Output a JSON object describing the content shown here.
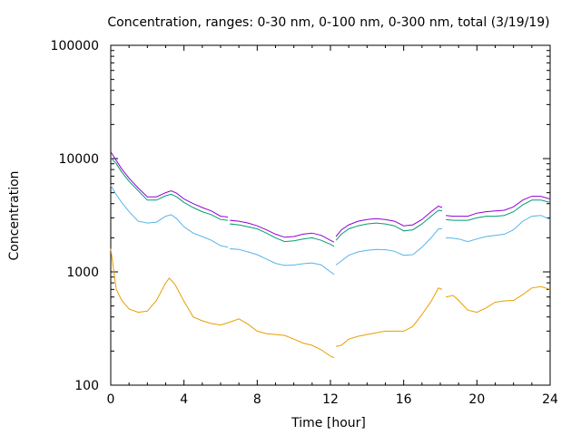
{
  "chart_data": {
    "type": "line",
    "title": "Concentration, ranges: 0-30 nm, 0-100 nm, 0-300 nm, total (3/19/19)",
    "xlabel": "Time [hour]",
    "ylabel": "Concentration",
    "xlim": [
      0,
      24
    ],
    "ylim": [
      100,
      100000
    ],
    "yscale": "log",
    "grid": false,
    "xticks": [
      0,
      4,
      8,
      12,
      16,
      20,
      24
    ],
    "xtick_labels": [
      "0",
      "4",
      "8",
      "12",
      "16",
      "20",
      "24"
    ],
    "yticks": [
      100,
      1000,
      10000,
      100000
    ],
    "ytick_labels": [
      "100",
      "1000",
      "10000",
      "100000"
    ],
    "series": [
      {
        "color": "#e69f00",
        "points": [
          [
            0.0,
            1600
          ],
          [
            0.3,
            700
          ],
          [
            0.6,
            560
          ],
          [
            1.0,
            470
          ],
          [
            1.5,
            440
          ],
          [
            2.0,
            450
          ],
          [
            2.5,
            560
          ],
          [
            3.0,
            800
          ],
          [
            3.2,
            880
          ],
          [
            3.5,
            780
          ],
          [
            4.0,
            550
          ],
          [
            4.5,
            400
          ],
          [
            5.0,
            370
          ],
          [
            5.5,
            350
          ],
          [
            6.0,
            340
          ],
          [
            6.5,
            360
          ],
          [
            7.0,
            385
          ],
          [
            7.5,
            345
          ],
          [
            8.0,
            300
          ],
          [
            8.5,
            285
          ],
          [
            9.0,
            280
          ],
          [
            9.5,
            275
          ],
          [
            10.0,
            255
          ],
          [
            10.5,
            235
          ],
          [
            11.0,
            225
          ],
          [
            11.5,
            205
          ],
          [
            12.0,
            180
          ],
          [
            12.2,
            175
          ],
          null,
          [
            12.3,
            220
          ],
          [
            12.6,
            225
          ],
          [
            13.0,
            255
          ],
          [
            13.5,
            270
          ],
          [
            14.0,
            280
          ],
          [
            14.5,
            290
          ],
          [
            15.0,
            300
          ],
          [
            15.5,
            300
          ],
          [
            16.0,
            300
          ],
          [
            16.5,
            330
          ],
          [
            17.0,
            420
          ],
          [
            17.5,
            550
          ],
          [
            17.9,
            720
          ],
          [
            18.1,
            700
          ],
          null,
          [
            18.3,
            600
          ],
          [
            18.7,
            620
          ],
          [
            19.0,
            560
          ],
          [
            19.5,
            460
          ],
          [
            20.0,
            440
          ],
          [
            20.5,
            480
          ],
          [
            21.0,
            540
          ],
          [
            21.5,
            555
          ],
          [
            22.0,
            560
          ],
          [
            22.5,
            630
          ],
          [
            23.0,
            720
          ],
          [
            23.5,
            740
          ],
          [
            24.0,
            700
          ]
        ]
      },
      {
        "color": "#56b4e9",
        "points": [
          [
            0.0,
            5800
          ],
          [
            0.3,
            4800
          ],
          [
            0.6,
            4100
          ],
          [
            1.0,
            3400
          ],
          [
            1.5,
            2800
          ],
          [
            2.0,
            2700
          ],
          [
            2.5,
            2750
          ],
          [
            3.0,
            3100
          ],
          [
            3.3,
            3200
          ],
          [
            3.6,
            2950
          ],
          [
            4.0,
            2500
          ],
          [
            4.5,
            2200
          ],
          [
            5.0,
            2050
          ],
          [
            5.5,
            1900
          ],
          [
            6.0,
            1700
          ],
          [
            6.4,
            1650
          ],
          null,
          [
            6.5,
            1600
          ],
          [
            7.0,
            1580
          ],
          [
            7.5,
            1500
          ],
          [
            8.0,
            1420
          ],
          [
            8.5,
            1300
          ],
          [
            9.0,
            1190
          ],
          [
            9.5,
            1140
          ],
          [
            10.0,
            1150
          ],
          [
            10.5,
            1180
          ],
          [
            11.0,
            1200
          ],
          [
            11.5,
            1150
          ],
          [
            12.0,
            1000
          ],
          [
            12.2,
            950
          ],
          null,
          [
            12.3,
            1150
          ],
          [
            12.6,
            1250
          ],
          [
            13.0,
            1400
          ],
          [
            13.5,
            1500
          ],
          [
            14.0,
            1550
          ],
          [
            14.5,
            1580
          ],
          [
            15.0,
            1570
          ],
          [
            15.5,
            1520
          ],
          [
            16.0,
            1400
          ],
          [
            16.5,
            1420
          ],
          [
            17.0,
            1650
          ],
          [
            17.5,
            2000
          ],
          [
            17.9,
            2400
          ],
          [
            18.1,
            2400
          ],
          null,
          [
            18.3,
            2000
          ],
          [
            18.7,
            1980
          ],
          [
            19.0,
            1950
          ],
          [
            19.5,
            1850
          ],
          [
            20.0,
            1950
          ],
          [
            20.5,
            2050
          ],
          [
            21.0,
            2100
          ],
          [
            21.5,
            2150
          ],
          [
            22.0,
            2350
          ],
          [
            22.5,
            2800
          ],
          [
            23.0,
            3100
          ],
          [
            23.5,
            3150
          ],
          [
            24.0,
            2900
          ]
        ]
      },
      {
        "color": "#009e73",
        "points": [
          [
            0.0,
            10200
          ],
          [
            0.3,
            9000
          ],
          [
            0.6,
            7600
          ],
          [
            1.0,
            6300
          ],
          [
            1.5,
            5200
          ],
          [
            2.0,
            4300
          ],
          [
            2.5,
            4300
          ],
          [
            3.0,
            4700
          ],
          [
            3.3,
            4850
          ],
          [
            3.6,
            4600
          ],
          [
            4.0,
            4100
          ],
          [
            4.5,
            3700
          ],
          [
            5.0,
            3400
          ],
          [
            5.5,
            3200
          ],
          [
            6.0,
            2900
          ],
          [
            6.4,
            2850
          ],
          null,
          [
            6.5,
            2650
          ],
          [
            7.0,
            2600
          ],
          [
            7.5,
            2500
          ],
          [
            8.0,
            2400
          ],
          [
            8.5,
            2200
          ],
          [
            9.0,
            2000
          ],
          [
            9.5,
            1850
          ],
          [
            10.0,
            1880
          ],
          [
            10.5,
            1950
          ],
          [
            11.0,
            2000
          ],
          [
            11.5,
            1900
          ],
          [
            12.0,
            1750
          ],
          [
            12.2,
            1680
          ],
          null,
          [
            12.3,
            1900
          ],
          [
            12.6,
            2150
          ],
          [
            13.0,
            2400
          ],
          [
            13.5,
            2550
          ],
          [
            14.0,
            2650
          ],
          [
            14.5,
            2700
          ],
          [
            15.0,
            2650
          ],
          [
            15.5,
            2550
          ],
          [
            16.0,
            2300
          ],
          [
            16.5,
            2350
          ],
          [
            17.0,
            2650
          ],
          [
            17.5,
            3100
          ],
          [
            17.9,
            3500
          ],
          [
            18.1,
            3450
          ],
          null,
          [
            18.3,
            2900
          ],
          [
            18.7,
            2850
          ],
          [
            19.0,
            2850
          ],
          [
            19.5,
            2850
          ],
          [
            20.0,
            3000
          ],
          [
            20.5,
            3100
          ],
          [
            21.0,
            3100
          ],
          [
            21.5,
            3150
          ],
          [
            22.0,
            3400
          ],
          [
            22.5,
            3900
          ],
          [
            23.0,
            4300
          ],
          [
            23.5,
            4300
          ],
          [
            24.0,
            4100
          ]
        ]
      },
      {
        "color": "#9400d3",
        "points": [
          [
            0.0,
            11500
          ],
          [
            0.3,
            9600
          ],
          [
            0.6,
            8100
          ],
          [
            1.0,
            6700
          ],
          [
            1.5,
            5500
          ],
          [
            2.0,
            4600
          ],
          [
            2.5,
            4600
          ],
          [
            3.0,
            5000
          ],
          [
            3.3,
            5200
          ],
          [
            3.6,
            4950
          ],
          [
            4.0,
            4400
          ],
          [
            4.5,
            4000
          ],
          [
            5.0,
            3700
          ],
          [
            5.5,
            3450
          ],
          [
            6.0,
            3100
          ],
          [
            6.4,
            3050
          ],
          null,
          [
            6.5,
            2850
          ],
          [
            7.0,
            2800
          ],
          [
            7.5,
            2700
          ],
          [
            8.0,
            2550
          ],
          [
            8.5,
            2350
          ],
          [
            9.0,
            2150
          ],
          [
            9.5,
            2020
          ],
          [
            10.0,
            2050
          ],
          [
            10.5,
            2150
          ],
          [
            11.0,
            2200
          ],
          [
            11.5,
            2100
          ],
          [
            12.0,
            1900
          ],
          [
            12.2,
            1830
          ],
          null,
          [
            12.3,
            2050
          ],
          [
            12.6,
            2350
          ],
          [
            13.0,
            2600
          ],
          [
            13.5,
            2800
          ],
          [
            14.0,
            2900
          ],
          [
            14.5,
            2950
          ],
          [
            15.0,
            2900
          ],
          [
            15.5,
            2800
          ],
          [
            16.0,
            2550
          ],
          [
            16.5,
            2600
          ],
          [
            17.0,
            2900
          ],
          [
            17.5,
            3400
          ],
          [
            17.9,
            3800
          ],
          [
            18.1,
            3700
          ],
          null,
          [
            18.3,
            3150
          ],
          [
            18.7,
            3100
          ],
          [
            19.0,
            3100
          ],
          [
            19.5,
            3100
          ],
          [
            20.0,
            3300
          ],
          [
            20.5,
            3400
          ],
          [
            21.0,
            3450
          ],
          [
            21.5,
            3500
          ],
          [
            22.0,
            3750
          ],
          [
            22.5,
            4300
          ],
          [
            23.0,
            4650
          ],
          [
            23.5,
            4650
          ],
          [
            24.0,
            4400
          ]
        ]
      }
    ]
  }
}
